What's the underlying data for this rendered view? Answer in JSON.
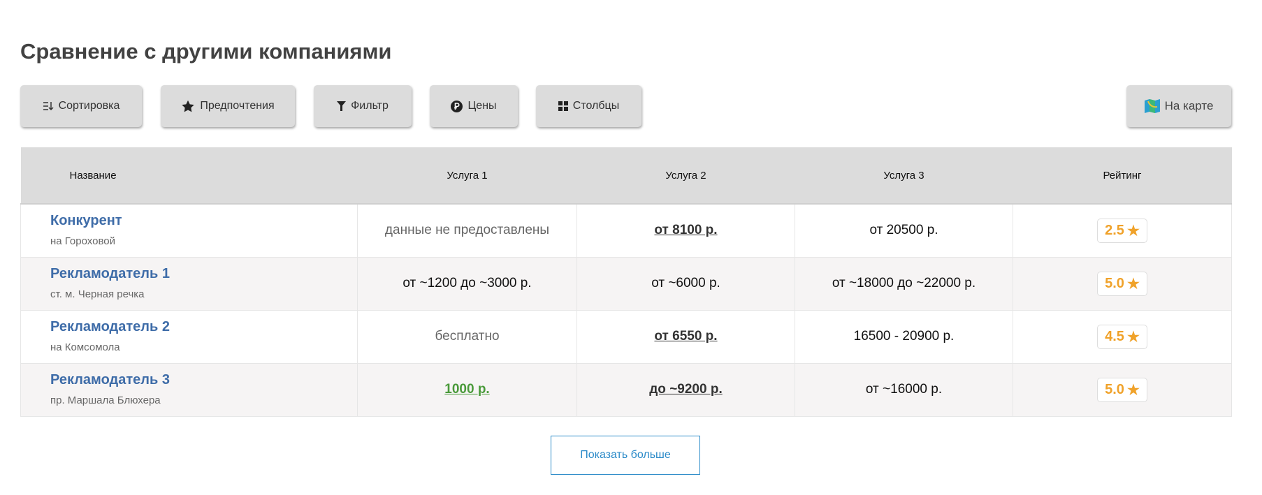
{
  "title": "Сравнение с другими компаниями",
  "toolbar": {
    "sort": "Сортировка",
    "sort_icon": "sort-icon",
    "prefs": "Предпочтения",
    "prefs_icon": "star-icon",
    "filter": "Фильтр",
    "filter_icon": "filter-icon",
    "prices": "Цены",
    "prices_icon": "ruble-icon",
    "columns": "Столбцы",
    "columns_icon": "grid-icon",
    "map": "На карте",
    "map_icon": "map-icon"
  },
  "table": {
    "headers": [
      "Название",
      "Услуга 1",
      "Услуга 2",
      "Услуга 3",
      "Рейтинг"
    ],
    "rows": [
      {
        "name": "Конкурент",
        "address": "на Гороховой",
        "s1": "данные не предоставлены",
        "s2": "от 8100 р.",
        "s3": "от 20500 р.",
        "rating": "2.5"
      },
      {
        "name": "Рекламодатель 1",
        "address": "ст. м. Черная речка",
        "s1": "от ~1200 до ~3000 р.",
        "s2": "от ~6000 р.",
        "s3": "от ~18000 до ~22000 р.",
        "rating": "5.0"
      },
      {
        "name": "Рекламодатель 2",
        "address": "на Комсомола",
        "s1": "бесплатно",
        "s2": "от 6550 р.",
        "s3": "16500 - 20900 р.",
        "rating": "4.5"
      },
      {
        "name": "Рекламодатель 3",
        "address": "пр. Маршала Блюхера",
        "s1": "1000 р.",
        "s2": "до ~9200 р.",
        "s3": "от ~16000 р.",
        "rating": "5.0"
      }
    ]
  },
  "show_more": "Показать больше",
  "colors": {
    "link": "#3e6ca8",
    "rating": "#f0a22a",
    "green_price": "#4a9a3a",
    "accent": "#2a8ac8"
  }
}
